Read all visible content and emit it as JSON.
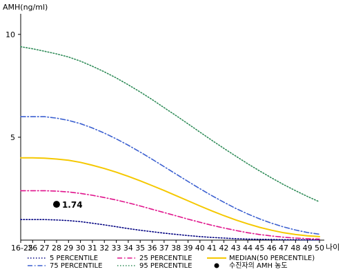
{
  "chart_data": {
    "type": "line",
    "ylabel": "AMH(ng/ml)",
    "xlabel": "나이",
    "ylim": [
      0,
      11
    ],
    "yticks": [
      5,
      10
    ],
    "categories": [
      "16-25",
      "26",
      "27",
      "28",
      "29",
      "30",
      "31",
      "32",
      "33",
      "34",
      "35",
      "36",
      "37",
      "38",
      "39",
      "40",
      "41",
      "42",
      "43",
      "44",
      "45",
      "46",
      "47",
      "48",
      "49",
      "50"
    ],
    "grid": false,
    "series": [
      {
        "name": "5 PERCENTILE",
        "color": "#000080",
        "style": "dotted",
        "values": [
          1.0,
          1.0,
          1.0,
          0.98,
          0.95,
          0.9,
          0.82,
          0.74,
          0.65,
          0.56,
          0.48,
          0.41,
          0.34,
          0.28,
          0.22,
          0.17,
          0.13,
          0.1,
          0.07,
          0.05,
          0.04,
          0.03,
          0.02,
          0.02,
          0.01,
          0.01
        ]
      },
      {
        "name": "25 PERCENTILE",
        "color": "#e0148c",
        "style": "dashdot",
        "values": [
          2.4,
          2.4,
          2.4,
          2.38,
          2.34,
          2.27,
          2.18,
          2.07,
          1.95,
          1.81,
          1.66,
          1.5,
          1.34,
          1.18,
          1.02,
          0.87,
          0.72,
          0.59,
          0.47,
          0.36,
          0.27,
          0.2,
          0.14,
          0.1,
          0.07,
          0.05
        ]
      },
      {
        "name": "MEDIAN(50 PERCENTILE)",
        "color": "#f5c800",
        "style": "solid",
        "values": [
          4.0,
          4.0,
          3.98,
          3.94,
          3.88,
          3.78,
          3.64,
          3.48,
          3.3,
          3.1,
          2.88,
          2.65,
          2.41,
          2.16,
          1.91,
          1.66,
          1.42,
          1.19,
          0.98,
          0.79,
          0.62,
          0.48,
          0.36,
          0.27,
          0.21,
          0.17
        ]
      },
      {
        "name": "75 PERCENTILE",
        "color": "#3a5fd0",
        "style": "dashdot",
        "values": [
          6.0,
          6.0,
          6.0,
          5.93,
          5.82,
          5.66,
          5.45,
          5.2,
          4.92,
          4.61,
          4.28,
          3.93,
          3.57,
          3.21,
          2.85,
          2.5,
          2.16,
          1.84,
          1.54,
          1.27,
          1.03,
          0.82,
          0.64,
          0.49,
          0.37,
          0.29
        ]
      },
      {
        "name": "95 PERCENTILE",
        "color": "#2e8b57",
        "style": "dotted",
        "values": [
          9.4,
          9.3,
          9.18,
          9.05,
          8.9,
          8.7,
          8.45,
          8.18,
          7.88,
          7.55,
          7.2,
          6.83,
          6.44,
          6.05,
          5.65,
          5.25,
          4.85,
          4.46,
          4.08,
          3.71,
          3.36,
          3.02,
          2.7,
          2.4,
          2.12,
          1.86
        ]
      }
    ],
    "point": {
      "category": "28",
      "value": 1.74,
      "label": "1.74",
      "legend": "수진자의 AMH 농도",
      "color": "#000000"
    },
    "legend_position": "bottom"
  }
}
